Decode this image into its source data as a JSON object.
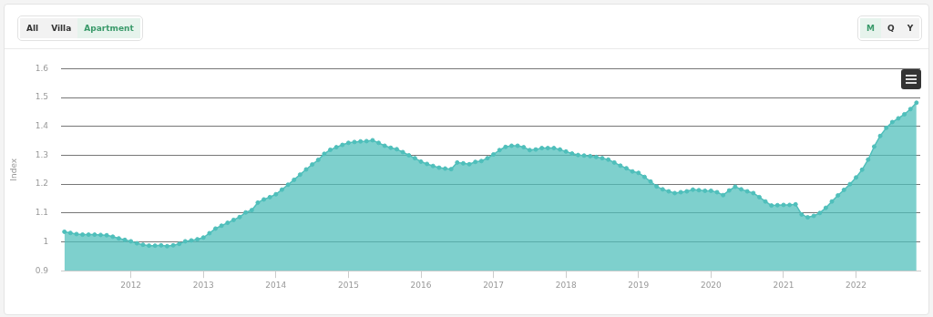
{
  "chart_data": {
    "type": "area",
    "ylabel": "Index",
    "annotations": [
      "All",
      "Villa",
      "Apartment",
      "M",
      "Q",
      "Y"
    ],
    "x": [
      "2011-02",
      "2011-03",
      "2011-04",
      "2011-05",
      "2011-06",
      "2011-07",
      "2011-08",
      "2011-09",
      "2011-10",
      "2011-11",
      "2011-12",
      "2012-01",
      "2012-02",
      "2012-03",
      "2012-04",
      "2012-05",
      "2012-06",
      "2012-07",
      "2012-08",
      "2012-09",
      "2012-10",
      "2012-11",
      "2012-12",
      "2013-01",
      "2013-02",
      "2013-03",
      "2013-04",
      "2013-05",
      "2013-06",
      "2013-07",
      "2013-08",
      "2013-09",
      "2013-10",
      "2013-11",
      "2013-12",
      "2014-01",
      "2014-02",
      "2014-03",
      "2014-04",
      "2014-05",
      "2014-06",
      "2014-07",
      "2014-08",
      "2014-09",
      "2014-10",
      "2014-11",
      "2014-12",
      "2015-01",
      "2015-02",
      "2015-03",
      "2015-04",
      "2015-05",
      "2015-06",
      "2015-07",
      "2015-08",
      "2015-09",
      "2015-10",
      "2015-11",
      "2015-12",
      "2016-01",
      "2016-02",
      "2016-03",
      "2016-04",
      "2016-05",
      "2016-06",
      "2016-07",
      "2016-08",
      "2016-09",
      "2016-10",
      "2016-11",
      "2016-12",
      "2017-01",
      "2017-02",
      "2017-03",
      "2017-04",
      "2017-05",
      "2017-06",
      "2017-07",
      "2017-08",
      "2017-09",
      "2017-10",
      "2017-11",
      "2017-12",
      "2018-01",
      "2018-02",
      "2018-03",
      "2018-04",
      "2018-05",
      "2018-06",
      "2018-07",
      "2018-08",
      "2018-09",
      "2018-10",
      "2018-11",
      "2018-12",
      "2019-01",
      "2019-02",
      "2019-03",
      "2019-04",
      "2019-05",
      "2019-06",
      "2019-07",
      "2019-08",
      "2019-09",
      "2019-10",
      "2019-11",
      "2019-12",
      "2020-01",
      "2020-02",
      "2020-03",
      "2020-04",
      "2020-05",
      "2020-06",
      "2020-07",
      "2020-08",
      "2020-09",
      "2020-10",
      "2020-11",
      "2020-12",
      "2021-01",
      "2021-02",
      "2021-03",
      "2021-04",
      "2021-05",
      "2021-06",
      "2021-07",
      "2021-08",
      "2021-09",
      "2021-10",
      "2021-11",
      "2021-12",
      "2022-01",
      "2022-02",
      "2022-03",
      "2022-04",
      "2022-05",
      "2022-06",
      "2022-07",
      "2022-08",
      "2022-09",
      "2022-10",
      "2022-11"
    ],
    "series": [
      {
        "color": "#4fbfbb",
        "values": [
          1.035,
          1.031,
          1.027,
          1.025,
          1.025,
          1.025,
          1.024,
          1.023,
          1.018,
          1.012,
          1.007,
          1.002,
          0.995,
          0.99,
          0.987,
          0.987,
          0.988,
          0.985,
          0.988,
          0.993,
          1.002,
          1.005,
          1.009,
          1.015,
          1.03,
          1.046,
          1.056,
          1.066,
          1.076,
          1.086,
          1.102,
          1.11,
          1.136,
          1.147,
          1.155,
          1.165,
          1.181,
          1.198,
          1.215,
          1.233,
          1.251,
          1.268,
          1.284,
          1.305,
          1.319,
          1.328,
          1.336,
          1.343,
          1.346,
          1.348,
          1.349,
          1.352,
          1.343,
          1.333,
          1.326,
          1.321,
          1.311,
          1.3,
          1.29,
          1.278,
          1.27,
          1.263,
          1.257,
          1.254,
          1.252,
          1.275,
          1.272,
          1.269,
          1.277,
          1.28,
          1.29,
          1.303,
          1.318,
          1.329,
          1.333,
          1.333,
          1.328,
          1.318,
          1.32,
          1.325,
          1.325,
          1.325,
          1.32,
          1.313,
          1.306,
          1.301,
          1.299,
          1.297,
          1.294,
          1.29,
          1.285,
          1.275,
          1.264,
          1.255,
          1.244,
          1.239,
          1.225,
          1.209,
          1.192,
          1.182,
          1.175,
          1.169,
          1.172,
          1.175,
          1.181,
          1.179,
          1.177,
          1.177,
          1.172,
          1.162,
          1.178,
          1.191,
          1.182,
          1.175,
          1.169,
          1.155,
          1.14,
          1.126,
          1.127,
          1.128,
          1.128,
          1.13,
          1.095,
          1.085,
          1.09,
          1.1,
          1.118,
          1.14,
          1.161,
          1.18,
          1.2,
          1.223,
          1.25,
          1.285,
          1.33,
          1.367,
          1.395,
          1.415,
          1.428,
          1.442,
          1.46,
          1.482
        ]
      }
    ],
    "xlim": [
      "2011-01-15",
      "2022-11-20"
    ],
    "xticks": [
      "2012",
      "2013",
      "2014",
      "2015",
      "2016",
      "2017",
      "2018",
      "2019",
      "2020",
      "2021",
      "2022"
    ],
    "ylim": [
      0.9,
      1.6
    ],
    "yticks": [
      0.9,
      1,
      1.1,
      1.2,
      1.3,
      1.4,
      1.5,
      1.6
    ],
    "grid": "y",
    "legend": false,
    "marker": "circle"
  }
}
